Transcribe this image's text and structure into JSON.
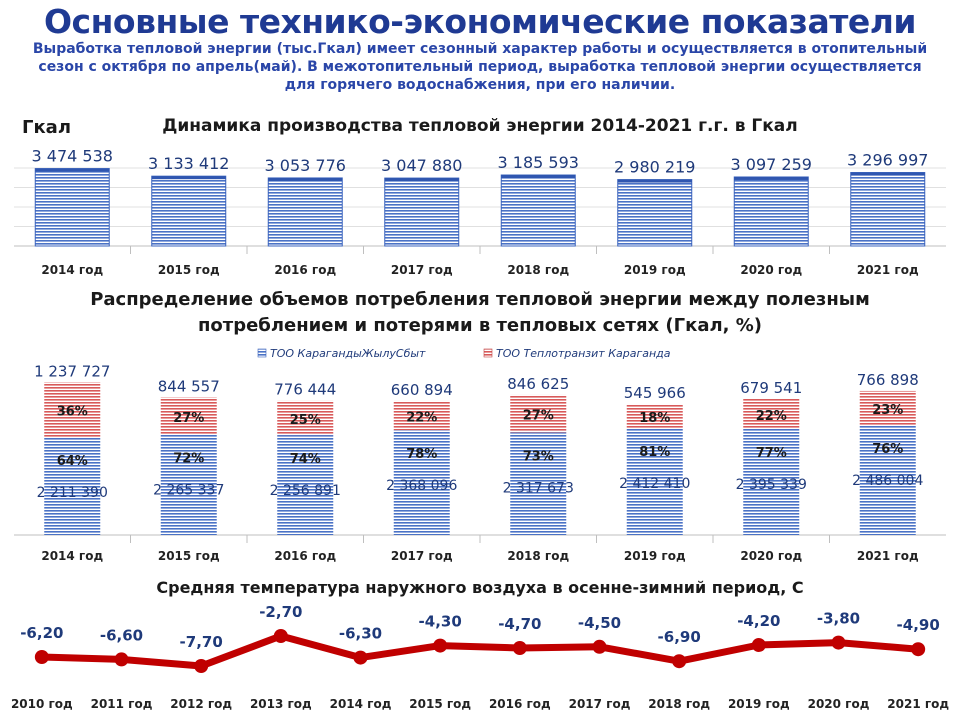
{
  "header": {
    "title": "Основные технико-экономические показатели",
    "subtitle_line1": "Выработка тепловой энергии (тыс.Гкал)  имеет сезонный характер работы и осуществляется в отопительный",
    "subtitle_line2": "сезон с октября по апрель(май). В межотопительный период, выработка тепловой энергии осуществляется",
    "subtitle_line3": "для горячего водоснабжения, при его наличии."
  },
  "colors": {
    "bar_blue": "#4a72c6",
    "bar_red": "#d85a5a",
    "line_red": "#c00000",
    "label_blue": "#1f3a7a"
  },
  "chart_data": [
    {
      "type": "bar",
      "title": "Динамика производства тепловой энергии 2014-2021 г.г. в Гкал",
      "ylabel": "Гкал",
      "categories": [
        "2014 год",
        "2015 год",
        "2016 год",
        "2017 год",
        "2018 год",
        "2019 год",
        "2020 год",
        "2021 год"
      ],
      "values": [
        3474538,
        3133412,
        3053776,
        3047880,
        3185593,
        2980219,
        3097259,
        3296997
      ],
      "value_labels": [
        "3 474 538",
        "3 133 412",
        "3 053 776",
        "3 047 880",
        "3 185 593",
        "2 980 219",
        "3 097 259",
        "3 296 997"
      ],
      "ylim": [
        0,
        3500000
      ],
      "grid": true
    },
    {
      "type": "bar",
      "stacked": true,
      "title_line1": "Распределение объемов потребления тепловой энергии между полезным",
      "title_line2": "потреблением и потерями в тепловых сетях (Гкал, %)",
      "legend_position": "top",
      "categories": [
        "2014 год",
        "2015 год",
        "2016 год",
        "2017 год",
        "2018 год",
        "2019 год",
        "2020 год",
        "2021 год"
      ],
      "series": [
        {
          "name": "ТОО КарагандыЖылуСбыт",
          "values": [
            2211390,
            2265337,
            2256891,
            2368096,
            2317673,
            2412410,
            2395339,
            2486004
          ],
          "value_labels": [
            "2 211 390",
            "2 265 337",
            "2 256 891",
            "2 368 096",
            "2 317 673",
            "2 412 410",
            "2 395 339",
            "2 486 004"
          ],
          "percent_labels": [
            "64%",
            "72%",
            "74%",
            "78%",
            "73%",
            "81%",
            "77%",
            "76%"
          ]
        },
        {
          "name": "ТОО Теплотранзит Караганда",
          "values": [
            1237727,
            844557,
            776444,
            660894,
            846625,
            545966,
            679541,
            766898
          ],
          "value_labels": [
            "1 237 727",
            "844 557",
            "776 444",
            "660 894",
            "846 625",
            "545 966",
            "679 541",
            "766 898"
          ],
          "percent_labels": [
            "36%",
            "27%",
            "25%",
            "22%",
            "27%",
            "18%",
            "22%",
            "23%"
          ]
        }
      ],
      "ylim": [
        0,
        3500000
      ]
    },
    {
      "type": "line",
      "title": "Средняя температура наружного воздуха в осенне-зимний  период, С",
      "categories": [
        "2010 год",
        "2011 год",
        "2012 год",
        "2013 год",
        "2014 год",
        "2015 год",
        "2016 год",
        "2017 год",
        "2018 год",
        "2019 год",
        "2020 год",
        "2021 год"
      ],
      "values": [
        -6.2,
        -6.6,
        -7.7,
        -2.7,
        -6.3,
        -4.3,
        -4.7,
        -4.5,
        -6.9,
        -4.2,
        -3.8,
        -4.9
      ],
      "value_labels": [
        "-6,20",
        "-6,60",
        "-7,70",
        "-2,70",
        "-6,30",
        "-4,30",
        "-4,70",
        "-4,50",
        "-6,90",
        "-4,20",
        "-3,80",
        "-4,90"
      ]
    }
  ]
}
